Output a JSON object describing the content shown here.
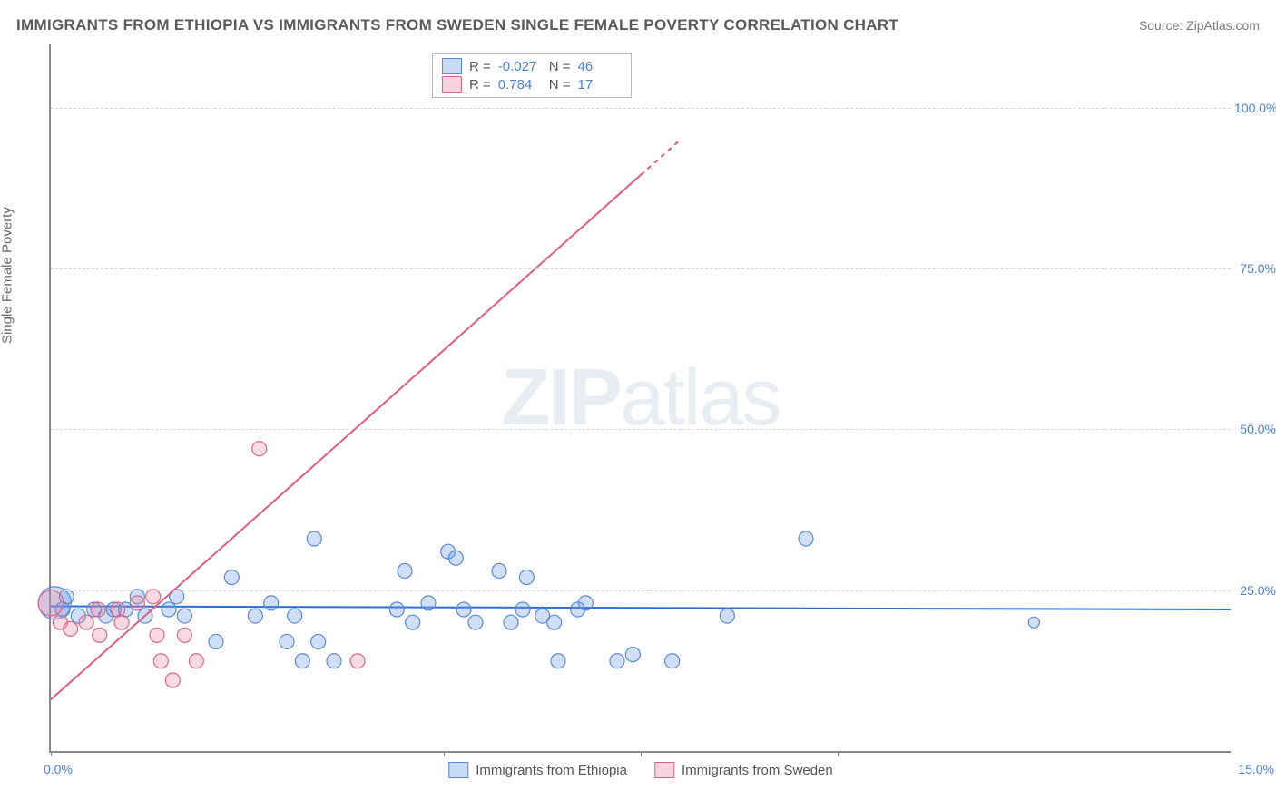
{
  "title": "IMMIGRANTS FROM ETHIOPIA VS IMMIGRANTS FROM SWEDEN SINGLE FEMALE POVERTY CORRELATION CHART",
  "source": "Source: ZipAtlas.com",
  "y_axis_label": "Single Female Poverty",
  "watermark": {
    "bold": "ZIP",
    "rest": "atlas"
  },
  "chart": {
    "type": "scatter",
    "xlim": [
      0,
      15
    ],
    "ylim": [
      0,
      110
    ],
    "x_ticks": [
      0,
      5,
      7.5,
      10
    ],
    "x_tick_labels": {
      "0": "0.0%",
      "15": "15.0%"
    },
    "y_ticks": [
      25,
      50,
      75,
      100
    ],
    "y_tick_labels": [
      "25.0%",
      "50.0%",
      "75.0%",
      "100.0%"
    ],
    "grid_color": "#d8d8d8",
    "background_color": "#ffffff",
    "axis_color": "#888888"
  },
  "series": [
    {
      "name": "Immigrants from Ethiopia",
      "color_fill": "rgba(100,150,230,0.30)",
      "color_stroke": "#5a8ad0",
      "marker_radius": 8,
      "R": "-0.027",
      "N": "46",
      "regression": {
        "x1": 0,
        "y1": 22.5,
        "x2": 15,
        "y2": 22.0,
        "stroke": "#2f6fd0",
        "width": 2
      },
      "points": [
        [
          0.05,
          23,
          18
        ],
        [
          0.15,
          22,
          8
        ],
        [
          0.2,
          24,
          8
        ],
        [
          0.35,
          21,
          8
        ],
        [
          0.55,
          22,
          8
        ],
        [
          0.7,
          21,
          8
        ],
        [
          0.8,
          22,
          8
        ],
        [
          0.95,
          22,
          8
        ],
        [
          1.1,
          24,
          8
        ],
        [
          1.2,
          21,
          8
        ],
        [
          1.5,
          22,
          8
        ],
        [
          1.6,
          24,
          8
        ],
        [
          1.7,
          21,
          8
        ],
        [
          2.1,
          17,
          8
        ],
        [
          2.3,
          27,
          8
        ],
        [
          2.6,
          21,
          8
        ],
        [
          2.8,
          23,
          8
        ],
        [
          3.0,
          17,
          8
        ],
        [
          3.1,
          21,
          8
        ],
        [
          3.2,
          14,
          8
        ],
        [
          3.35,
          33,
          8
        ],
        [
          3.4,
          17,
          8
        ],
        [
          3.6,
          14,
          8
        ],
        [
          4.4,
          22,
          8
        ],
        [
          4.5,
          28,
          8
        ],
        [
          4.6,
          20,
          8
        ],
        [
          4.8,
          23,
          8
        ],
        [
          5.05,
          31,
          8
        ],
        [
          5.15,
          30,
          8
        ],
        [
          5.25,
          22,
          8
        ],
        [
          5.4,
          20,
          8
        ],
        [
          5.7,
          28,
          8
        ],
        [
          5.85,
          20,
          8
        ],
        [
          6.0,
          22,
          8
        ],
        [
          6.05,
          27,
          8
        ],
        [
          6.25,
          21,
          8
        ],
        [
          6.4,
          20,
          8
        ],
        [
          6.45,
          14,
          8
        ],
        [
          6.7,
          22,
          8
        ],
        [
          6.8,
          23,
          8
        ],
        [
          7.2,
          14,
          8
        ],
        [
          7.4,
          15,
          8
        ],
        [
          7.9,
          14,
          8
        ],
        [
          8.6,
          21,
          8
        ],
        [
          9.6,
          33,
          8
        ],
        [
          12.5,
          20,
          6
        ]
      ]
    },
    {
      "name": "Immigrants from Sweden",
      "color_fill": "rgba(235,130,160,0.30)",
      "color_stroke": "#d56a8a",
      "marker_radius": 8,
      "R": "0.784",
      "N": "17",
      "regression": {
        "x1": 0,
        "y1": 8,
        "x2": 8.0,
        "y2": 95,
        "stroke": "#e05a85",
        "width": 2,
        "dash_after_x": 7.5
      },
      "points": [
        [
          0.0,
          23,
          14
        ],
        [
          0.12,
          20,
          8
        ],
        [
          0.25,
          19,
          8
        ],
        [
          0.45,
          20,
          8
        ],
        [
          0.6,
          22,
          8
        ],
        [
          0.62,
          18,
          8
        ],
        [
          0.85,
          22,
          8
        ],
        [
          0.9,
          20,
          8
        ],
        [
          1.1,
          23,
          8
        ],
        [
          1.3,
          24,
          8
        ],
        [
          1.35,
          18,
          8
        ],
        [
          1.4,
          14,
          8
        ],
        [
          1.55,
          11,
          8
        ],
        [
          1.7,
          18,
          8
        ],
        [
          1.85,
          14,
          8
        ],
        [
          2.65,
          47,
          8
        ],
        [
          3.9,
          14,
          8
        ]
      ]
    }
  ],
  "legend_top": {
    "rows": [
      {
        "swatch": "blue",
        "R": "-0.027",
        "N": "46"
      },
      {
        "swatch": "pink",
        "R": "0.784",
        "N": "17"
      }
    ]
  },
  "legend_bottom": [
    {
      "swatch": "blue",
      "label": "Immigrants from Ethiopia"
    },
    {
      "swatch": "pink",
      "label": "Immigrants from Sweden"
    }
  ]
}
